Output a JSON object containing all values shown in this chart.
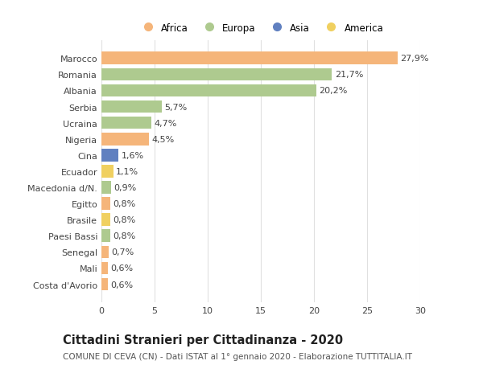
{
  "categories": [
    "Costa d'Avorio",
    "Mali",
    "Senegal",
    "Paesi Bassi",
    "Brasile",
    "Egitto",
    "Macedonia d/N.",
    "Ecuador",
    "Cina",
    "Nigeria",
    "Ucraina",
    "Serbia",
    "Albania",
    "Romania",
    "Marocco"
  ],
  "values": [
    0.6,
    0.6,
    0.7,
    0.8,
    0.8,
    0.8,
    0.9,
    1.1,
    1.6,
    4.5,
    4.7,
    5.7,
    20.2,
    21.7,
    27.9
  ],
  "labels": [
    "0,6%",
    "0,6%",
    "0,7%",
    "0,8%",
    "0,8%",
    "0,8%",
    "0,9%",
    "1,1%",
    "1,6%",
    "4,5%",
    "4,7%",
    "5,7%",
    "20,2%",
    "21,7%",
    "27,9%"
  ],
  "colors": [
    "#F5B57A",
    "#F5B57A",
    "#F5B57A",
    "#AECA8F",
    "#F0D060",
    "#F5B57A",
    "#AECA8F",
    "#F0D060",
    "#6080C0",
    "#F5B57A",
    "#AECA8F",
    "#AECA8F",
    "#AECA8F",
    "#AECA8F",
    "#F5B57A"
  ],
  "legend_labels": [
    "Africa",
    "Europa",
    "Asia",
    "America"
  ],
  "legend_colors": [
    "#F5B57A",
    "#AECA8F",
    "#6080C0",
    "#F0D060"
  ],
  "title": "Cittadini Stranieri per Cittadinanza - 2020",
  "subtitle": "COMUNE DI CEVA (CN) - Dati ISTAT al 1° gennaio 2020 - Elaborazione TUTTITALIA.IT",
  "xlim": [
    0,
    30
  ],
  "xticks": [
    0,
    5,
    10,
    15,
    20,
    25,
    30
  ],
  "background_color": "#ffffff",
  "grid_color": "#e0e0e0",
  "bar_height": 0.78,
  "title_fontsize": 10.5,
  "subtitle_fontsize": 7.5,
  "tick_fontsize": 8,
  "label_fontsize": 8,
  "legend_fontsize": 8.5
}
